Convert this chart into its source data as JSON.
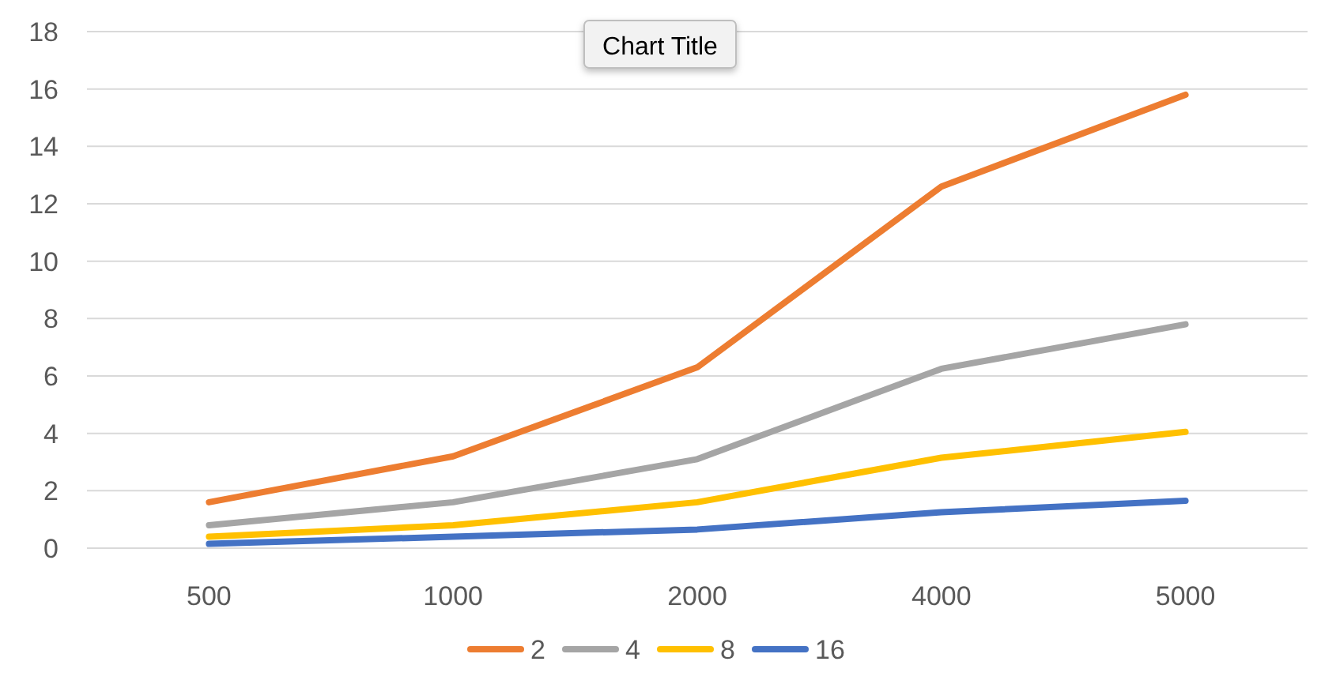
{
  "chart_data": {
    "type": "line",
    "title": "Chart Title",
    "categories": [
      "500",
      "1000",
      "2000",
      "4000",
      "5000"
    ],
    "series": [
      {
        "name": "2",
        "color": "#ed7d31",
        "values": [
          1.6,
          3.2,
          6.3,
          12.6,
          15.8
        ]
      },
      {
        "name": "4",
        "color": "#a5a5a5",
        "values": [
          0.8,
          1.6,
          3.1,
          6.25,
          7.8
        ]
      },
      {
        "name": "8",
        "color": "#ffc000",
        "values": [
          0.4,
          0.8,
          1.6,
          3.15,
          4.05
        ]
      },
      {
        "name": "16",
        "color": "#4472c4",
        "values": [
          0.15,
          0.4,
          0.65,
          1.25,
          1.65
        ]
      }
    ],
    "ylim": [
      0,
      18
    ],
    "yticks": [
      0,
      2,
      4,
      6,
      8,
      10,
      12,
      14,
      16,
      18
    ],
    "grid": "y",
    "legend": "bottom",
    "marker": "none",
    "line_style": "solid"
  }
}
